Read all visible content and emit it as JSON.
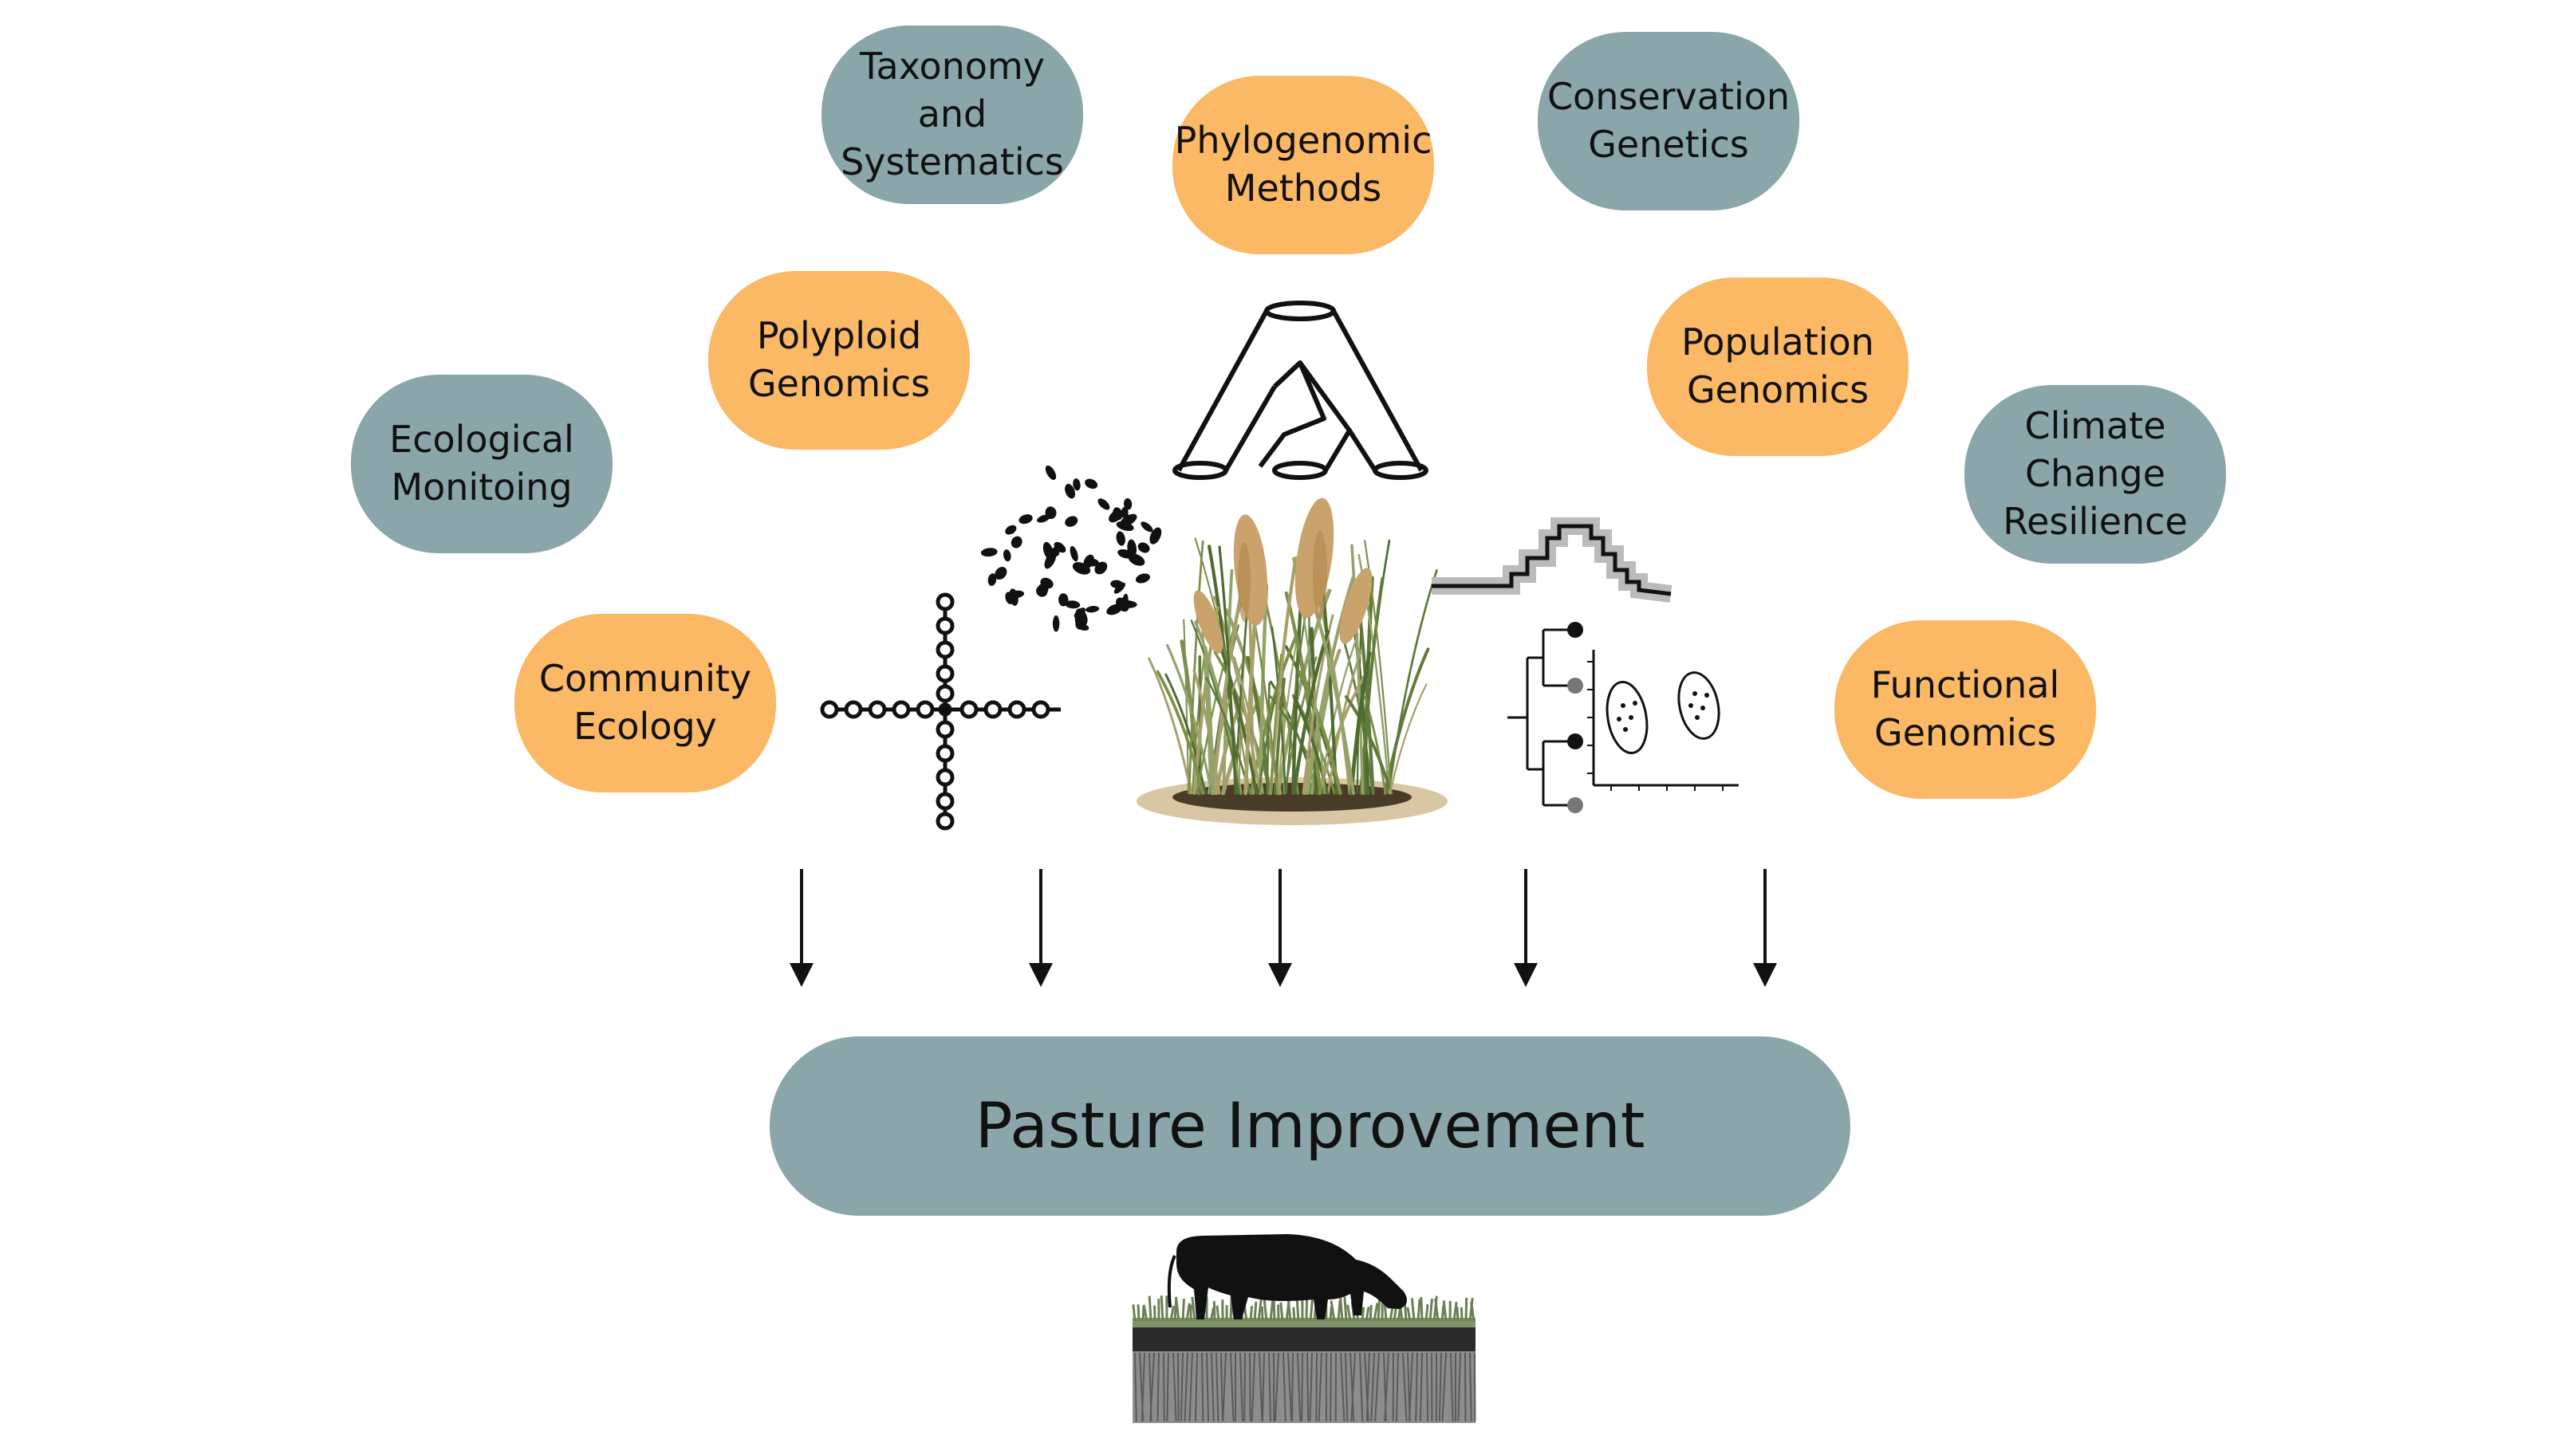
{
  "topics": [
    {
      "id": "taxonomy",
      "label": "Taxonomy and\nSystematics",
      "color": "#8aa6aa"
    },
    {
      "id": "phylogenomic",
      "label": "Phylogenomic\nMethods",
      "color": "#fbb865"
    },
    {
      "id": "conservation",
      "label": "Conservation\nGenetics",
      "color": "#8aa6aa"
    },
    {
      "id": "polyploid",
      "label": "Polyploid\nGenomics",
      "color": "#fbb865"
    },
    {
      "id": "population",
      "label": "Population\nGenomics",
      "color": "#fbb865"
    },
    {
      "id": "ecological",
      "label": "Ecological\nMonitoing",
      "color": "#8aa6aa"
    },
    {
      "id": "climate",
      "label": "Climate\nChange\nResilience",
      "color": "#8aa6aa"
    },
    {
      "id": "community",
      "label": "Community\nEcology",
      "color": "#fbb865"
    },
    {
      "id": "functional",
      "label": "Functional\nGenomics",
      "color": "#fbb865"
    }
  ],
  "outcome": {
    "label": "Pasture Improvement",
    "color": "#8aa6aa"
  },
  "icons": [
    "species-tree-icon",
    "chromosome-cloud-icon",
    "haplotype-network-icon",
    "grass-tussock-icon",
    "demographic-history-icon",
    "tree-and-pca-icon",
    "grazing-cow-icon",
    "down-arrow-icon"
  ],
  "colors": {
    "teal": "#8aa6aa",
    "orange": "#fbb865",
    "ink": "#111111"
  }
}
